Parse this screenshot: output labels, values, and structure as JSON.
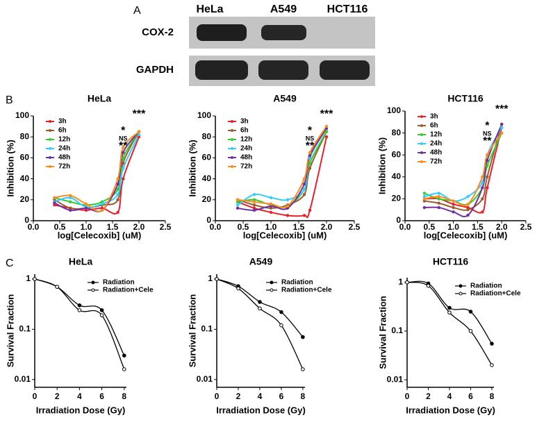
{
  "panel_labels": [
    "A",
    "B",
    "C"
  ],
  "blot": {
    "columns": [
      "HeLa",
      "A549",
      "HCT116"
    ],
    "rows": [
      "COX-2",
      "GAPDH"
    ]
  },
  "chart_data": [
    {
      "type": "line",
      "title": "HeLa",
      "x_label": "log[Celecoxib] (uM)",
      "y_label": "Inhibition (%)",
      "x": [
        0.4,
        0.7,
        1.0,
        1.3,
        1.6,
        1.7,
        2.0
      ],
      "series": [
        {
          "name": "3h",
          "color": "#e8202a",
          "values": [
            15,
            12,
            10,
            12,
            8,
            40,
            80
          ]
        },
        {
          "name": "6h",
          "color": "#9c5a2e",
          "values": [
            20,
            12,
            12,
            15,
            20,
            55,
            85
          ]
        },
        {
          "name": "12h",
          "color": "#33cc33",
          "values": [
            22,
            18,
            15,
            18,
            30,
            60,
            85
          ]
        },
        {
          "name": "24h",
          "color": "#33ccff",
          "values": [
            18,
            22,
            13,
            16,
            25,
            50,
            82
          ]
        },
        {
          "name": "48h",
          "color": "#7030a0",
          "values": [
            17,
            10,
            12,
            10,
            35,
            65,
            85
          ]
        },
        {
          "name": "72h",
          "color": "#ff8c1a",
          "values": [
            22,
            24,
            16,
            10,
            40,
            70,
            85
          ]
        }
      ],
      "xlim": [
        0,
        2.5
      ],
      "xticks": [
        {
          "value": 0,
          "label": "0.0"
        },
        0.5,
        {
          "value": 1,
          "label": "1.0"
        },
        1.5,
        {
          "value": 2,
          "label": "2.0"
        },
        2.5
      ],
      "ylim": [
        0,
        100
      ],
      "yticks": [
        0,
        20,
        40,
        60,
        80,
        100
      ],
      "legend": "upper left",
      "annotations": [
        "*",
        "NS",
        "**",
        "***"
      ]
    },
    {
      "type": "line",
      "title": "A549",
      "x_label": "log[Celecoxib] (uM)",
      "y_label": "Inhibition (%)",
      "x": [
        0.4,
        0.7,
        1.0,
        1.3,
        1.6,
        1.7,
        2.0
      ],
      "series": [
        {
          "name": "3h",
          "color": "#e8202a",
          "values": [
            18,
            12,
            8,
            5,
            5,
            10,
            80
          ]
        },
        {
          "name": "6h",
          "color": "#9c5a2e",
          "values": [
            20,
            15,
            12,
            15,
            25,
            50,
            85
          ]
        },
        {
          "name": "12h",
          "color": "#33cc33",
          "values": [
            18,
            20,
            15,
            14,
            30,
            55,
            85
          ]
        },
        {
          "name": "24h",
          "color": "#33ccff",
          "values": [
            15,
            25,
            22,
            20,
            30,
            60,
            88
          ]
        },
        {
          "name": "48h",
          "color": "#7030a0",
          "values": [
            12,
            10,
            14,
            12,
            35,
            62,
            88
          ]
        },
        {
          "name": "72h",
          "color": "#ff8c1a",
          "values": [
            20,
            18,
            16,
            14,
            40,
            65,
            90
          ]
        }
      ],
      "xlim": [
        0,
        2.5
      ],
      "xticks": [
        {
          "value": 0,
          "label": "0.0"
        },
        0.5,
        {
          "value": 1,
          "label": "1.0"
        },
        1.5,
        {
          "value": 2,
          "label": "2.0"
        },
        2.5
      ],
      "ylim": [
        0,
        100
      ],
      "yticks": [
        0,
        20,
        40,
        60,
        80,
        100
      ],
      "legend": "upper left",
      "annotations": [
        "*",
        "NS",
        "**",
        "***"
      ]
    },
    {
      "type": "line",
      "title": "HCT116",
      "x_label": "log[Celecoxib] (uM)",
      "y_label": "Inhibition (%)",
      "x": [
        0.4,
        0.7,
        1.0,
        1.3,
        1.6,
        1.7,
        2.0
      ],
      "series": [
        {
          "name": "3h",
          "color": "#e8202a",
          "values": [
            20,
            20,
            15,
            12,
            8,
            30,
            85
          ]
        },
        {
          "name": "6h",
          "color": "#9c5a2e",
          "values": [
            18,
            16,
            12,
            10,
            20,
            40,
            88
          ]
        },
        {
          "name": "12h",
          "color": "#33cc33",
          "values": [
            25,
            20,
            18,
            15,
            30,
            50,
            80
          ]
        },
        {
          "name": "24h",
          "color": "#33ccff",
          "values": [
            22,
            25,
            18,
            22,
            35,
            60,
            85
          ]
        },
        {
          "name": "48h",
          "color": "#7030a0",
          "values": [
            12,
            12,
            8,
            5,
            30,
            55,
            88
          ]
        },
        {
          "name": "72h",
          "color": "#ff8c1a",
          "values": [
            20,
            22,
            18,
            15,
            40,
            60,
            80
          ]
        }
      ],
      "xlim": [
        0,
        2.5
      ],
      "xticks": [
        {
          "value": 0,
          "label": "0.0"
        },
        0.5,
        {
          "value": 1,
          "label": "1.0"
        },
        1.5,
        {
          "value": 2,
          "label": "2.0"
        },
        2.5
      ],
      "ylim": [
        0,
        100
      ],
      "yticks": [
        0,
        20,
        40,
        60,
        80,
        100
      ],
      "legend": "upper left",
      "annotations": [
        "*",
        "NS",
        "**",
        "***"
      ]
    },
    {
      "type": "survival",
      "title": "HeLa",
      "x_label": "Irradiation Dose (Gy)",
      "y_label": "Survival Fraction",
      "x": [
        0,
        2,
        4,
        6,
        8
      ],
      "series": [
        {
          "name": "Radiation",
          "color": "#000000",
          "marker": "filled",
          "values": [
            1,
            0.7,
            0.3,
            0.24,
            0.03
          ]
        },
        {
          "name": "Radiation+Cele",
          "color": "#000000",
          "marker": "open",
          "values": [
            1,
            0.7,
            0.24,
            0.19,
            0.016
          ]
        }
      ],
      "xlim": [
        0,
        8.2
      ],
      "xticks": [
        0,
        2,
        4,
        6,
        8
      ],
      "ylim": [
        0.007,
        1.25
      ],
      "yticks": [
        0.01,
        0.1,
        1
      ],
      "log_y": true,
      "legend": "upper right"
    },
    {
      "type": "survival",
      "title": "A549",
      "x_label": "Irradiation Dose (Gy)",
      "y_label": "Survival Fraction",
      "x": [
        0,
        2,
        4,
        6,
        8
      ],
      "series": [
        {
          "name": "Radiation",
          "color": "#000000",
          "marker": "filled",
          "values": [
            1,
            0.72,
            0.35,
            0.22,
            0.07
          ]
        },
        {
          "name": "Radiation+Cele",
          "color": "#000000",
          "marker": "open",
          "values": [
            1,
            0.65,
            0.26,
            0.12,
            0.016
          ]
        }
      ],
      "xlim": [
        0,
        8.2
      ],
      "xticks": [
        0,
        2,
        4,
        6,
        8
      ],
      "ylim": [
        0.007,
        1.25
      ],
      "yticks": [
        0.01,
        0.1,
        1
      ],
      "log_y": true,
      "legend": "upper right"
    },
    {
      "type": "survival",
      "title": "HCT116",
      "x_label": "Irradiation Dose (Gy)",
      "y_label": "Survival Fraction",
      "x": [
        0,
        2,
        4,
        6,
        8
      ],
      "series": [
        {
          "name": "Radiation",
          "color": "#000000",
          "marker": "filled",
          "values": [
            1,
            0.95,
            0.3,
            0.25,
            0.055
          ]
        },
        {
          "name": "Radiation+Cele",
          "color": "#000000",
          "marker": "open",
          "values": [
            1,
            0.85,
            0.24,
            0.1,
            0.02
          ]
        }
      ],
      "xlim": [
        0,
        8.2
      ],
      "xticks": [
        0,
        2,
        4,
        6,
        8
      ],
      "ylim": [
        0.007,
        1.25
      ],
      "yticks": [
        0.01,
        0.1,
        1
      ],
      "log_y": true,
      "legend": "upper right"
    }
  ]
}
